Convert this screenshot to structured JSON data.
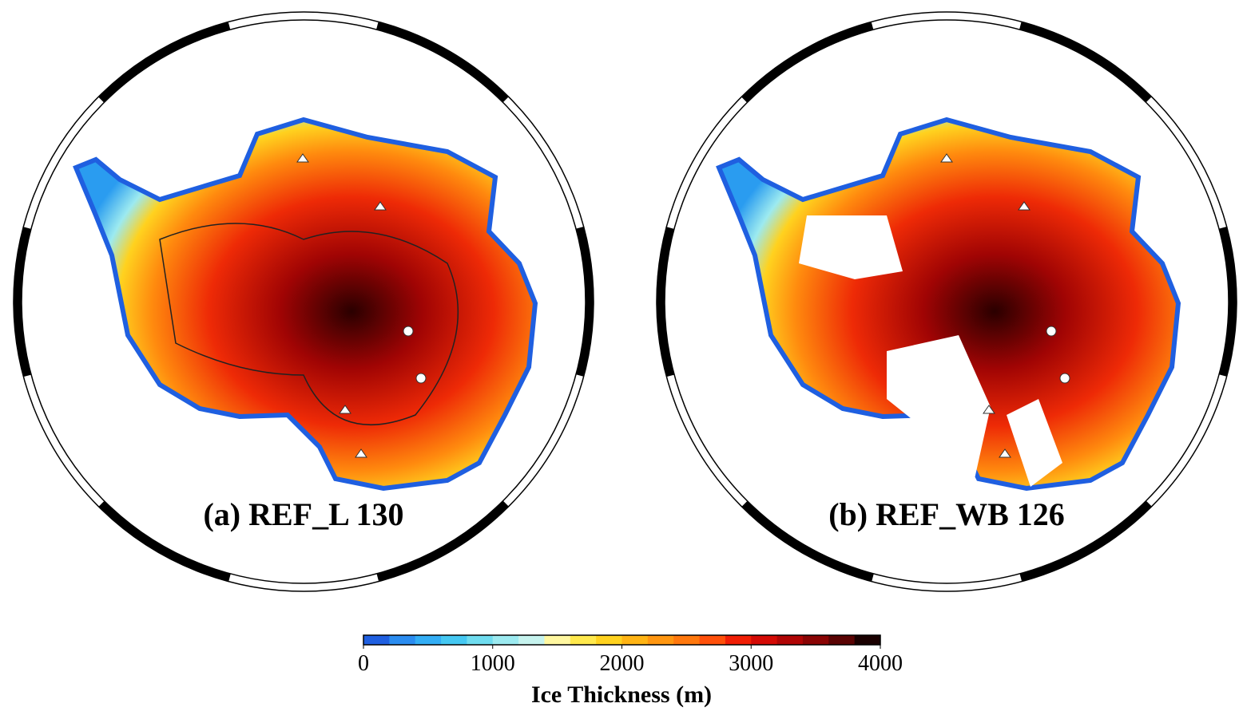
{
  "panels": [
    {
      "label": "(a) REF_L 130"
    },
    {
      "label": "(b) REF_WB 126"
    }
  ],
  "colorbar": {
    "label": "Ice Thickness (m)",
    "range": [
      0,
      4000
    ],
    "ticks": [
      0,
      1000,
      2000,
      3000,
      4000
    ],
    "colors": [
      "#1f5fe0",
      "#2a8cf0",
      "#33aef5",
      "#45c8f2",
      "#6fdcef",
      "#9ceaf0",
      "#c6f3ee",
      "#fff7a0",
      "#ffe94d",
      "#ffd21f",
      "#ffb414",
      "#ff9610",
      "#ff780d",
      "#ff500a",
      "#f01e05",
      "#d40a05",
      "#b00505",
      "#8a0404",
      "#5a0303",
      "#1a0000"
    ]
  }
}
